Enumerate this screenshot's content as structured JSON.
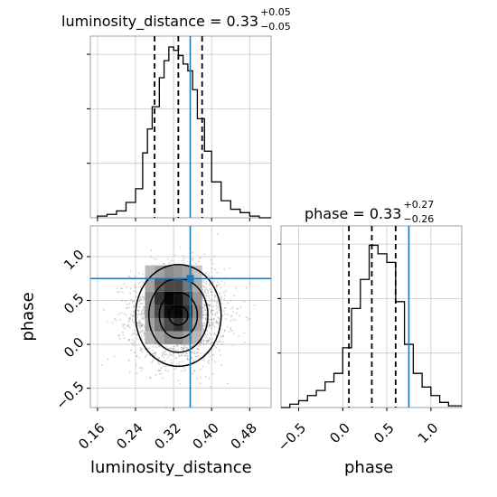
{
  "titles": {
    "ld": {
      "text": "luminosity_distance = 0.33",
      "sup": "+0.05",
      "sub": "−0.05"
    },
    "ph": {
      "text": "phase = 0.33",
      "sup": "+0.27",
      "sub": "−0.26"
    }
  },
  "axis_labels": {
    "ld_x": "luminosity_distance",
    "ph_x": "phase",
    "ph_y": "phase"
  },
  "colors": {
    "truth": "#1f77b4",
    "hist": "#000000",
    "grid": "#c8c8c8",
    "scatter": "#777777"
  },
  "chart_data": [
    {
      "type": "histogram",
      "name": "luminosity_distance marginal",
      "xlim": [
        0.145,
        0.525
      ],
      "bins": [
        [
          0.16,
          0.01
        ],
        [
          0.18,
          0.02
        ],
        [
          0.2,
          0.04
        ],
        [
          0.22,
          0.09
        ],
        [
          0.24,
          0.17
        ],
        [
          0.255,
          0.38
        ],
        [
          0.265,
          0.52
        ],
        [
          0.275,
          0.65
        ],
        [
          0.29,
          0.82
        ],
        [
          0.3,
          0.92
        ],
        [
          0.31,
          1.0
        ],
        [
          0.32,
          0.98
        ],
        [
          0.33,
          0.95
        ],
        [
          0.34,
          0.9
        ],
        [
          0.35,
          0.86
        ],
        [
          0.36,
          0.75
        ],
        [
          0.37,
          0.58
        ],
        [
          0.385,
          0.39
        ],
        [
          0.4,
          0.21
        ],
        [
          0.42,
          0.1
        ],
        [
          0.44,
          0.05
        ],
        [
          0.46,
          0.03
        ],
        [
          0.48,
          0.01
        ],
        [
          0.5,
          0.0
        ]
      ],
      "quantiles": [
        0.28,
        0.33,
        0.38
      ],
      "truth": 0.355,
      "xticks": [
        0.16,
        0.24,
        0.32,
        0.4,
        0.48
      ]
    },
    {
      "type": "histogram",
      "name": "phase marginal",
      "xlim": [
        -0.7,
        1.35
      ],
      "bins": [
        [
          -0.7,
          0.0
        ],
        [
          -0.6,
          0.02
        ],
        [
          -0.5,
          0.04
        ],
        [
          -0.4,
          0.07
        ],
        [
          -0.3,
          0.1
        ],
        [
          -0.2,
          0.15
        ],
        [
          -0.1,
          0.2
        ],
        [
          0.0,
          0.35
        ],
        [
          0.1,
          0.58
        ],
        [
          0.2,
          0.75
        ],
        [
          0.3,
          0.95
        ],
        [
          0.4,
          0.9
        ],
        [
          0.5,
          0.85
        ],
        [
          0.6,
          0.62
        ],
        [
          0.7,
          0.37
        ],
        [
          0.8,
          0.2
        ],
        [
          0.9,
          0.12
        ],
        [
          1.0,
          0.07
        ],
        [
          1.1,
          0.03
        ],
        [
          1.2,
          0.01
        ]
      ],
      "quantiles": [
        0.07,
        0.33,
        0.6
      ],
      "truth": 0.75,
      "xticks": [
        -0.5,
        0.0,
        0.5,
        1.0
      ]
    },
    {
      "type": "scatter",
      "name": "luminosity_distance vs phase 2D density",
      "xlim": [
        0.145,
        0.525
      ],
      "ylim": [
        -0.72,
        1.35
      ],
      "center": [
        0.33,
        0.33
      ],
      "spread": [
        0.05,
        0.27
      ],
      "n_points": 2200,
      "grid_cells": {
        "xbins": [
          0.26,
          0.28,
          0.3,
          0.32,
          0.34,
          0.36,
          0.38
        ],
        "ybins": [
          0.0,
          0.15,
          0.3,
          0.45,
          0.6,
          0.75
        ],
        "levels": [
          [
            0.2,
            0.3,
            0.4,
            0.4,
            0.3,
            0.2
          ],
          [
            0.3,
            0.5,
            0.7,
            0.8,
            0.6,
            0.3
          ],
          [
            0.4,
            0.7,
            0.95,
            1.0,
            0.7,
            0.4
          ],
          [
            0.4,
            0.8,
            1.0,
            0.95,
            0.7,
            0.35
          ],
          [
            0.3,
            0.6,
            0.8,
            0.7,
            0.5,
            0.3
          ],
          [
            0.2,
            0.3,
            0.4,
            0.35,
            0.25,
            0.15
          ]
        ]
      },
      "contours": [
        {
          "rx": 0.02,
          "ry": 0.11
        },
        {
          "rx": 0.04,
          "ry": 0.26
        },
        {
          "rx": 0.062,
          "ry": 0.42
        },
        {
          "rx": 0.09,
          "ry": 0.58
        }
      ],
      "truth": [
        0.355,
        0.75
      ],
      "xticks": [
        0.16,
        0.24,
        0.32,
        0.4,
        0.48
      ],
      "yticks": [
        -0.5,
        0.0,
        0.5,
        1.0
      ]
    }
  ]
}
